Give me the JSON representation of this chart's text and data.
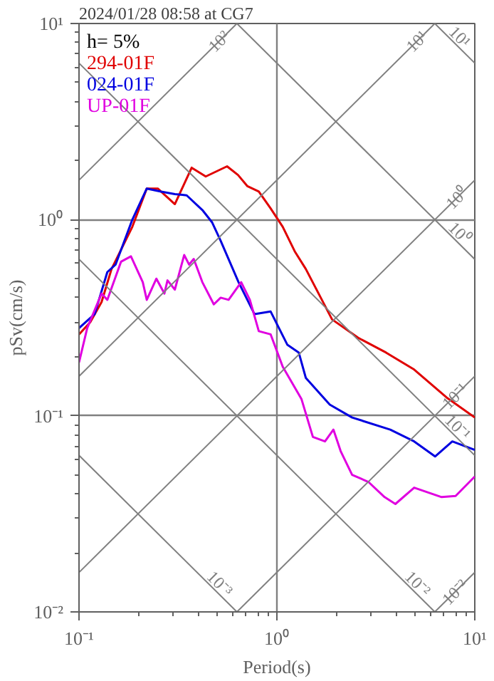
{
  "chart_data": {
    "type": "line",
    "title": "2024/01/28 08:58 at CG7",
    "xlabel": "Period(s)",
    "ylabel": "pSv(cm/s)",
    "legend_title": "h= 5%",
    "legend": "top left",
    "log": "xy",
    "grid": true,
    "xlim": [
      0.1,
      10
    ],
    "ylim": [
      0.01,
      10
    ],
    "xticks": [
      {
        "value": 0.1,
        "label": "10⁻¹"
      },
      {
        "value": 1,
        "label": "10⁰"
      },
      {
        "value": 10,
        "label": "10¹"
      }
    ],
    "yticks": [
      {
        "value": 0.01,
        "label": "10⁻²"
      },
      {
        "value": 0.1,
        "label": "10⁻¹"
      },
      {
        "value": 1,
        "label": "10⁰"
      },
      {
        "value": 10,
        "label": "10¹"
      }
    ],
    "series": [
      {
        "name": "294-01F",
        "color": "#e00000",
        "x": [
          0.1,
          0.114,
          0.13,
          0.146,
          0.186,
          0.22,
          0.25,
          0.305,
          0.371,
          0.437,
          0.56,
          0.636,
          0.71,
          0.81,
          0.93,
          1.07,
          1.23,
          1.4,
          1.9,
          2.57,
          3.56,
          4.94,
          7.2,
          10
        ],
        "values": [
          0.26,
          0.3,
          0.38,
          0.56,
          0.92,
          1.44,
          1.44,
          1.2,
          1.84,
          1.66,
          1.87,
          1.69,
          1.48,
          1.39,
          1.14,
          0.92,
          0.69,
          0.56,
          0.31,
          0.25,
          0.21,
          0.172,
          0.124,
          0.098
        ]
      },
      {
        "name": "024-01F",
        "color": "#0000e0",
        "x": [
          0.1,
          0.12,
          0.139,
          0.153,
          0.186,
          0.22,
          0.26,
          0.305,
          0.35,
          0.42,
          0.47,
          0.52,
          0.64,
          0.77,
          0.93,
          1.13,
          1.29,
          1.4,
          1.85,
          2.4,
          3.74,
          4.94,
          6.3,
          7.7,
          10
        ],
        "values": [
          0.28,
          0.33,
          0.54,
          0.59,
          1.0,
          1.44,
          1.39,
          1.35,
          1.33,
          1.12,
          0.97,
          0.78,
          0.48,
          0.33,
          0.34,
          0.23,
          0.21,
          0.156,
          0.114,
          0.098,
          0.085,
          0.074,
          0.062,
          0.074,
          0.067
        ]
      },
      {
        "name": "UP-01F",
        "color": "#e000e0",
        "x": [
          0.1,
          0.11,
          0.13,
          0.139,
          0.163,
          0.183,
          0.21,
          0.22,
          0.246,
          0.27,
          0.28,
          0.305,
          0.34,
          0.36,
          0.38,
          0.42,
          0.48,
          0.52,
          0.57,
          0.66,
          0.73,
          0.81,
          0.93,
          1.07,
          1.33,
          1.52,
          1.75,
          1.93,
          2.1,
          2.4,
          2.9,
          3.5,
          3.97,
          4.94,
          6.8,
          8.0,
          10
        ],
        "values": [
          0.187,
          0.28,
          0.42,
          0.39,
          0.61,
          0.65,
          0.48,
          0.39,
          0.5,
          0.42,
          0.49,
          0.44,
          0.66,
          0.59,
          0.63,
          0.48,
          0.37,
          0.4,
          0.39,
          0.48,
          0.39,
          0.27,
          0.26,
          0.178,
          0.122,
          0.078,
          0.074,
          0.085,
          0.066,
          0.05,
          0.046,
          0.0385,
          0.0355,
          0.043,
          0.0385,
          0.039,
          0.049
        ]
      },
      {
        "name": "10²",
        "color": "#808080",
        "x": [
          0.1,
          0.628
        ],
        "values": [
          1.59,
          10
        ]
      },
      {
        "name": "10¹",
        "color": "#808080",
        "x": [
          0.1,
          6.28
        ],
        "values": [
          0.159,
          10
        ]
      },
      {
        "name": "10⁰",
        "color": "#808080",
        "x": [
          0.1,
          10
        ],
        "values": [
          0.0159,
          1.59
        ]
      },
      {
        "name": "10⁻¹",
        "color": "#808080",
        "x": [
          0.628,
          10
        ],
        "values": [
          0.01,
          0.159
        ]
      },
      {
        "name": "10⁻²",
        "color": "#808080",
        "x": [
          6.28,
          10
        ],
        "values": [
          0.01,
          0.0159
        ]
      },
      {
        "name": "10¹",
        "color": "#808080",
        "x": [
          6.28,
          10
        ],
        "values": [
          10,
          6.28
        ]
      },
      {
        "name": "10⁰",
        "color": "#808080",
        "x": [
          0.628,
          10
        ],
        "values": [
          10,
          0.628
        ]
      },
      {
        "name": "10⁻¹",
        "color": "#808080",
        "x": [
          0.1,
          10
        ],
        "values": [
          6.28,
          0.0628
        ]
      },
      {
        "name": "10⁻²",
        "color": "#808080",
        "x": [
          0.1,
          6.28
        ],
        "values": [
          0.628,
          0.01
        ]
      },
      {
        "name": "10⁻³",
        "color": "#808080",
        "x": [
          0.1,
          0.628
        ],
        "values": [
          0.0628,
          0.01
        ]
      }
    ]
  }
}
